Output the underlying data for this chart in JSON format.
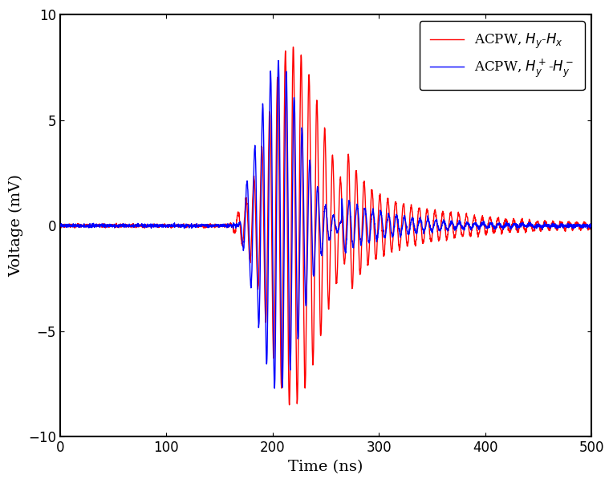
{
  "title": "",
  "xlabel": "Time (ns)",
  "ylabel": "Voltage (mV)",
  "xlim": [
    0,
    500
  ],
  "ylim": [
    -10,
    10
  ],
  "xticks": [
    0,
    100,
    200,
    300,
    400,
    500
  ],
  "yticks": [
    -10,
    -5,
    0,
    5,
    10
  ],
  "legend": [
    {
      "label": "ACPW, $H_y$-$H_x$",
      "color": "#ff0000"
    },
    {
      "label": "ACPW, $H_y^+$-$H_y^-$",
      "color": "#0000ff"
    }
  ],
  "line_width": 1.0,
  "figsize": [
    7.64,
    6.02
  ],
  "dpi": 100,
  "background_color": "#ffffff",
  "spine_color": "#000000",
  "tick_color": "#000000",
  "label_fontsize": 14,
  "tick_fontsize": 12,
  "legend_fontsize": 12
}
